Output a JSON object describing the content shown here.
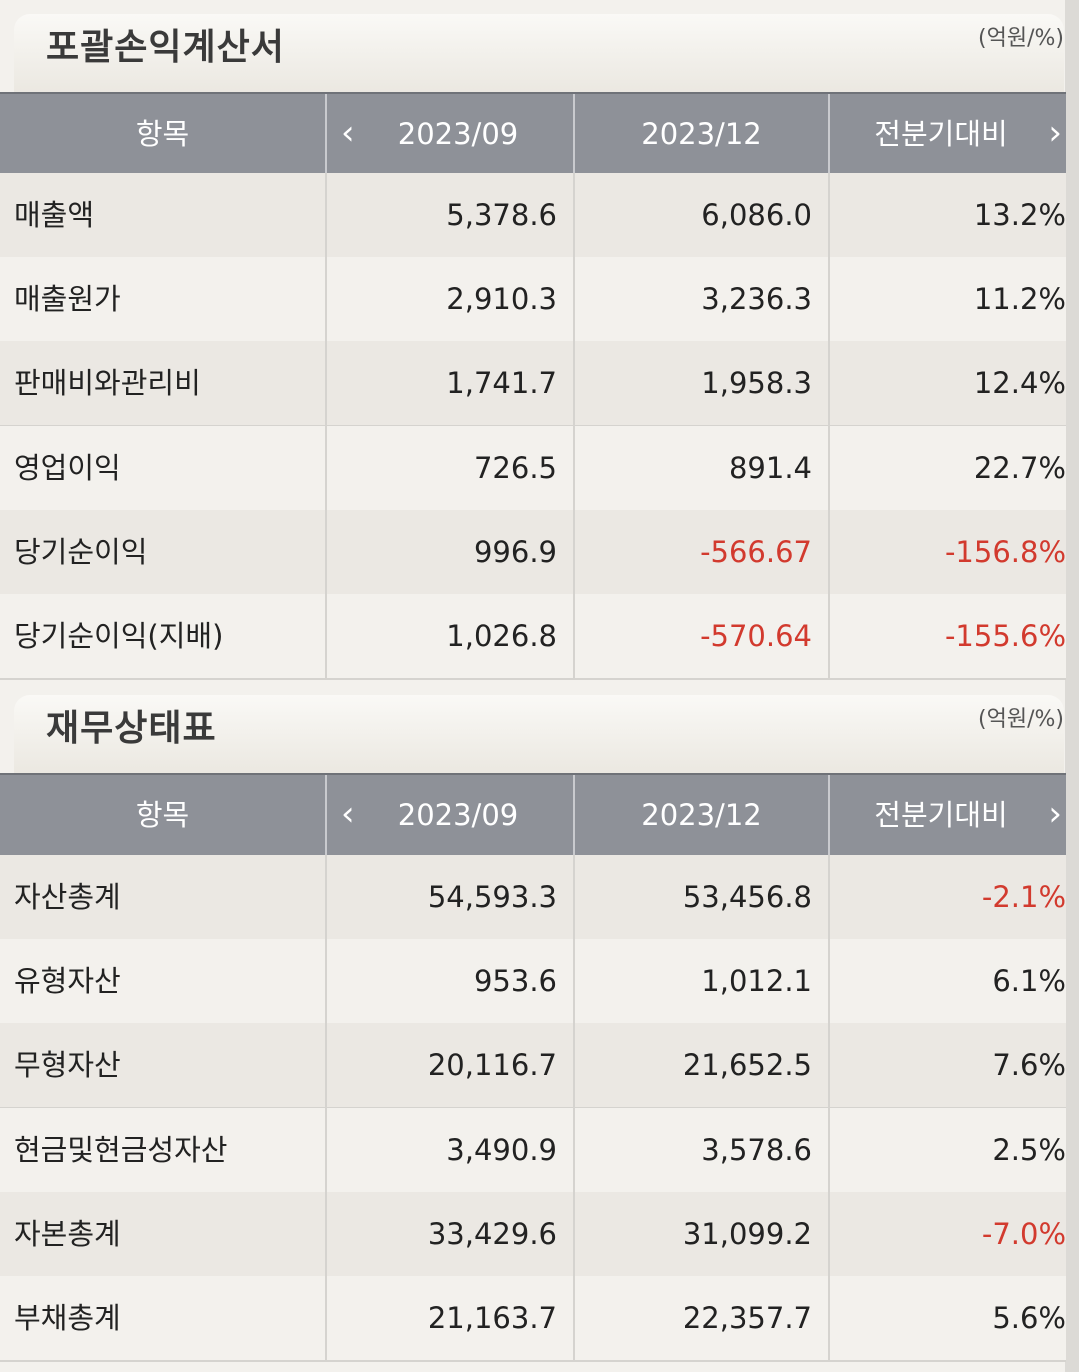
{
  "income": {
    "title": "포괄손익계산서",
    "unit": "(억원/%)",
    "header": {
      "item": "항목",
      "prev_period": "2023/09",
      "curr_period": "2023/12",
      "change": "전분기대비"
    },
    "rows": [
      {
        "label": "매출액",
        "prev": "5,378.6",
        "curr": "6,086.0",
        "change": "13.2%"
      },
      {
        "label": "매출원가",
        "prev": "2,910.3",
        "curr": "3,236.3",
        "change": "11.2%"
      },
      {
        "label": "판매비와관리비",
        "prev": "1,741.7",
        "curr": "1,958.3",
        "change": "12.4%"
      },
      {
        "label": "영업이익",
        "prev": "726.5",
        "curr": "891.4",
        "change": "22.7%"
      },
      {
        "label": "당기순이익",
        "prev": "996.9",
        "curr": "-566.67",
        "change": "-156.8%"
      },
      {
        "label": "당기순이익(지배)",
        "prev": "1,026.8",
        "curr": "-570.64",
        "change": "-155.6%"
      }
    ]
  },
  "balance": {
    "title": "재무상태표",
    "unit": "(억원/%)",
    "header": {
      "item": "항목",
      "prev_period": "2023/09",
      "curr_period": "2023/12",
      "change": "전분기대비"
    },
    "rows": [
      {
        "label": "자산총계",
        "prev": "54,593.3",
        "curr": "53,456.8",
        "change": "-2.1%"
      },
      {
        "label": "유형자산",
        "prev": "953.6",
        "curr": "1,012.1",
        "change": "6.1%"
      },
      {
        "label": "무형자산",
        "prev": "20,116.7",
        "curr": "21,652.5",
        "change": "7.6%"
      },
      {
        "label": "현금및현금성자산",
        "prev": "3,490.9",
        "curr": "3,578.6",
        "change": "2.5%"
      },
      {
        "label": "자본총계",
        "prev": "33,429.6",
        "curr": "31,099.2",
        "change": "-7.0%"
      },
      {
        "label": "부채총계",
        "prev": "21,163.7",
        "curr": "22,357.7",
        "change": "5.6%"
      }
    ]
  },
  "colors": {
    "negative": "#d23a2e",
    "header_bg": "#8e9198"
  },
  "icons": {
    "prev": "chevron-left-icon",
    "next": "chevron-right-icon"
  }
}
